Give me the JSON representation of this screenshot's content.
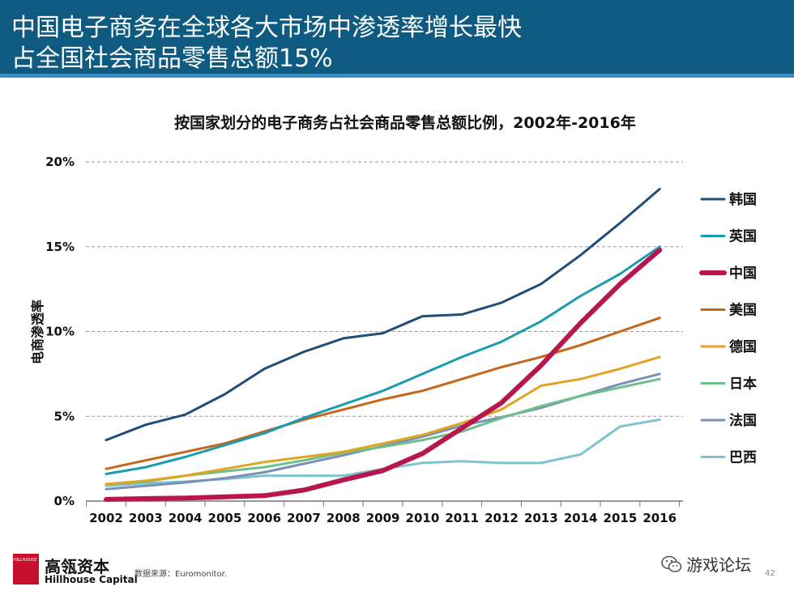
{
  "header": {
    "title_line1": "中国电子商务在全球各大市场中渗透率增长最快",
    "title_line2": "占全国社会商品零售总额15%",
    "bg_color": "#0e5a80"
  },
  "chart_data": {
    "type": "line",
    "title": "按国家划分的电子商务占社会商品零售总额比例，2002年-2016年",
    "ylabel": "电商渗透率",
    "xlabel": "",
    "ylim": [
      0,
      20
    ],
    "yticks": [
      0,
      5,
      10,
      15,
      20
    ],
    "ytick_labels": [
      "0%",
      "5%",
      "10%",
      "15%",
      "20%"
    ],
    "grid": "horizontal dashed",
    "legend_position": "right",
    "categories": [
      "2002",
      "2003",
      "2004",
      "2005",
      "2006",
      "2007",
      "2008",
      "2009",
      "2010",
      "2011",
      "2012",
      "2013",
      "2014",
      "2015",
      "2016"
    ],
    "series": [
      {
        "name": "韩国",
        "color": "#1f4e79",
        "width": 3,
        "values": [
          3.6,
          4.5,
          5.1,
          6.3,
          7.8,
          8.8,
          9.6,
          9.9,
          10.9,
          11.0,
          11.7,
          12.8,
          14.5,
          16.4,
          18.4
        ]
      },
      {
        "name": "英国",
        "color": "#1a9cb0",
        "width": 3,
        "values": [
          1.6,
          2.0,
          2.6,
          3.3,
          4.0,
          4.9,
          5.7,
          6.5,
          7.5,
          8.5,
          9.4,
          10.6,
          12.1,
          13.4,
          15.0
        ]
      },
      {
        "name": "中国",
        "color": "#b8174e",
        "width": 6,
        "values": [
          0.1,
          0.15,
          0.18,
          0.25,
          0.32,
          0.65,
          1.25,
          1.8,
          2.8,
          4.3,
          5.8,
          8.0,
          10.5,
          12.8,
          14.8
        ]
      },
      {
        "name": "美国",
        "color": "#c6661a",
        "width": 3,
        "values": [
          1.9,
          2.4,
          2.9,
          3.4,
          4.1,
          4.8,
          5.4,
          6.0,
          6.5,
          7.2,
          7.9,
          8.5,
          9.2,
          10.0,
          10.8
        ]
      },
      {
        "name": "德国",
        "color": "#e0a420",
        "width": 3,
        "values": [
          1.0,
          1.2,
          1.5,
          1.9,
          2.3,
          2.6,
          2.9,
          3.4,
          3.9,
          4.6,
          5.4,
          6.8,
          7.2,
          7.8,
          8.5
        ]
      },
      {
        "name": "日本",
        "color": "#6cc08a",
        "width": 3,
        "values": [
          1.0,
          1.15,
          1.5,
          1.75,
          2.0,
          2.4,
          2.85,
          3.2,
          3.6,
          4.1,
          4.9,
          5.6,
          6.2,
          6.7,
          7.2
        ]
      },
      {
        "name": "法国",
        "color": "#7b8fb8",
        "width": 3,
        "values": [
          0.7,
          0.9,
          1.1,
          1.35,
          1.7,
          2.2,
          2.7,
          3.25,
          3.8,
          4.45,
          4.95,
          5.5,
          6.2,
          6.9,
          7.5
        ]
      },
      {
        "name": "巴西",
        "color": "#7ec3d2",
        "width": 3,
        "values": [
          0.9,
          1.05,
          1.15,
          1.3,
          1.5,
          1.5,
          1.5,
          1.9,
          2.25,
          2.35,
          2.25,
          2.25,
          2.75,
          4.4,
          4.8
        ]
      }
    ]
  },
  "footer": {
    "brand_cn": "高瓴资本",
    "brand_en": "Hillhouse Capital",
    "logo_text": "HILLHOUSE",
    "source": "数据来源：Euromonitor.",
    "wechat_label": "游戏论坛",
    "page_number": "42"
  }
}
